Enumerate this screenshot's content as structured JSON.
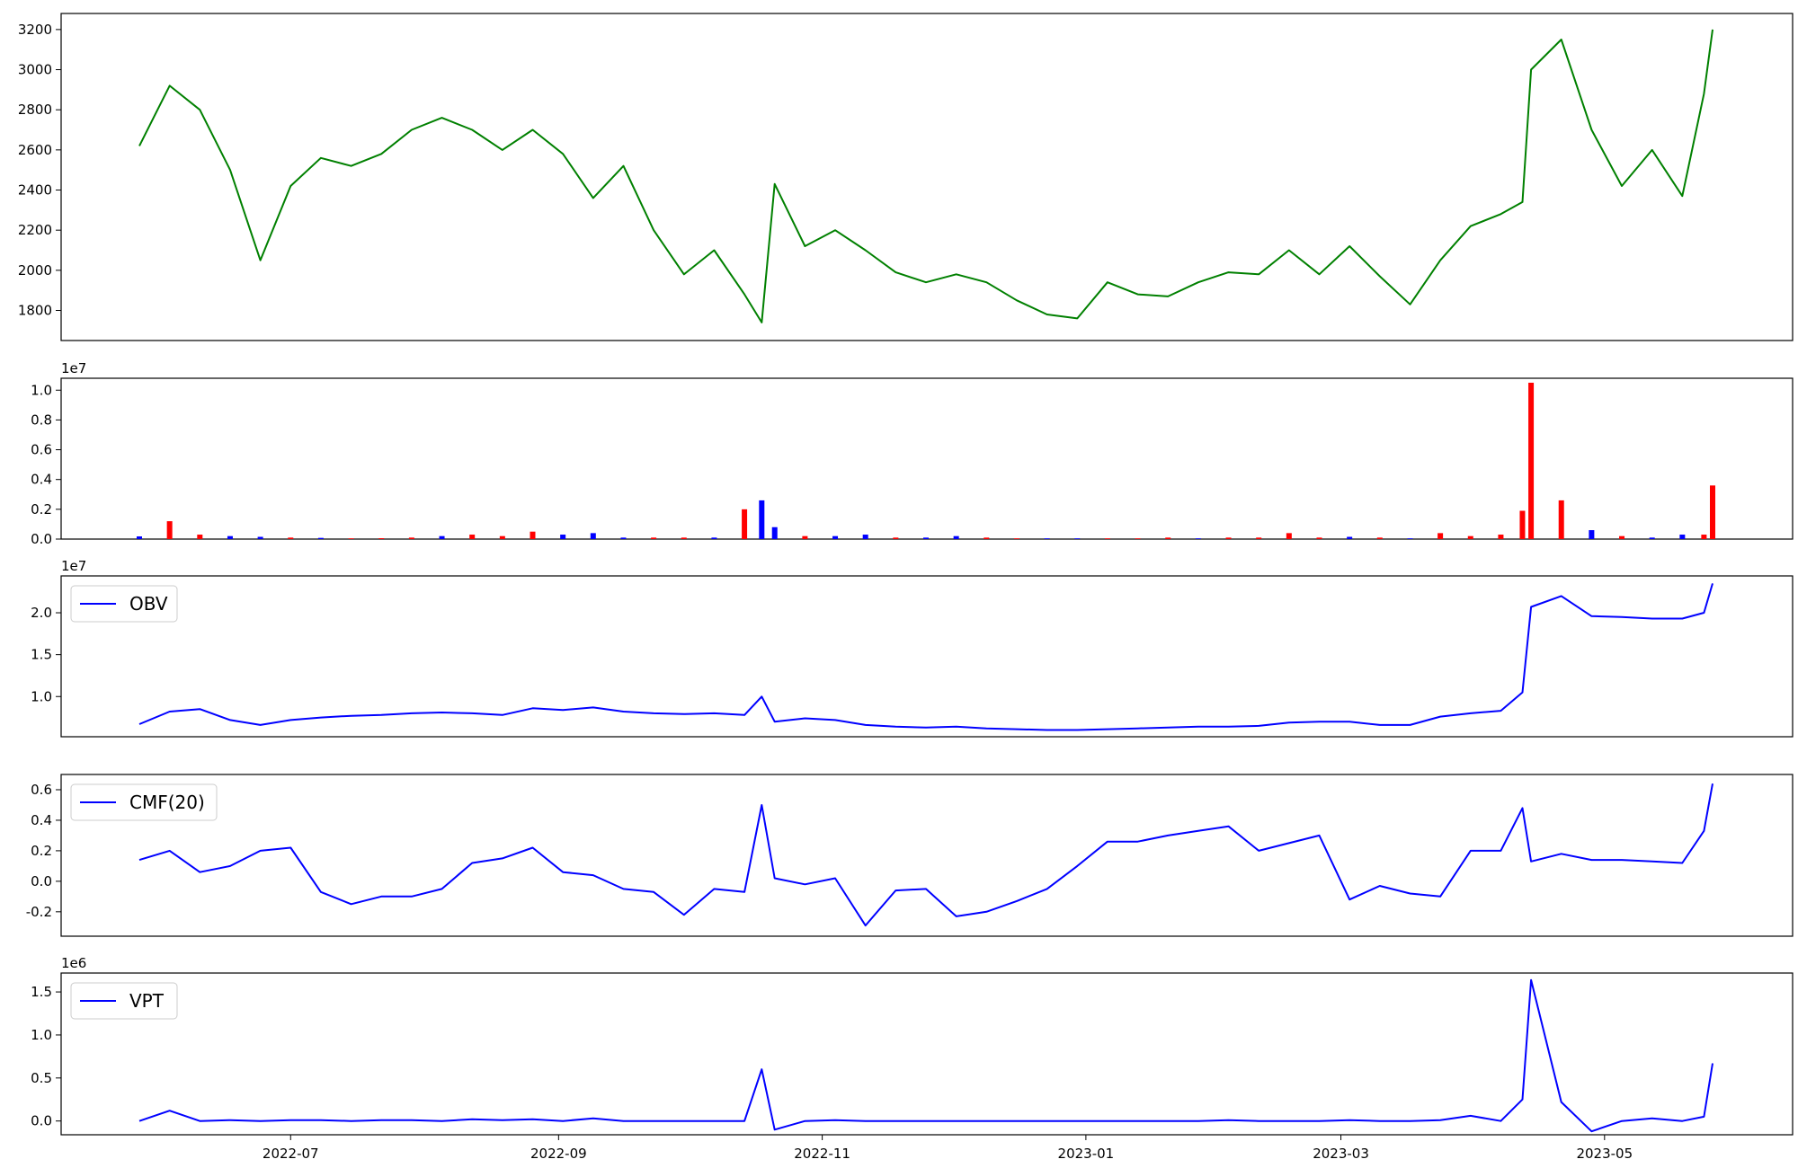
{
  "colors": {
    "price": "#008000",
    "up": "#ff0000",
    "down": "#0000ff",
    "indicator": "#0000ff",
    "axis": "#000000"
  },
  "x_dates": [
    "2022-05-27",
    "2022-06-03",
    "2022-06-10",
    "2022-06-17",
    "2022-06-24",
    "2022-07-01",
    "2022-07-08",
    "2022-07-15",
    "2022-07-22",
    "2022-07-29",
    "2022-08-05",
    "2022-08-12",
    "2022-08-19",
    "2022-08-26",
    "2022-09-02",
    "2022-09-09",
    "2022-09-16",
    "2022-09-23",
    "2022-09-30",
    "2022-10-07",
    "2022-10-14",
    "2022-10-18",
    "2022-10-21",
    "2022-10-28",
    "2022-11-04",
    "2022-11-11",
    "2022-11-18",
    "2022-11-25",
    "2022-12-02",
    "2022-12-09",
    "2022-12-16",
    "2022-12-23",
    "2022-12-30",
    "2023-01-06",
    "2023-01-13",
    "2023-01-20",
    "2023-01-27",
    "2023-02-03",
    "2023-02-10",
    "2023-02-17",
    "2023-02-24",
    "2023-03-03",
    "2023-03-10",
    "2023-03-17",
    "2023-03-24",
    "2023-03-31",
    "2023-04-07",
    "2023-04-12",
    "2023-04-14",
    "2023-04-21",
    "2023-04-28",
    "2023-05-05",
    "2023-05-12",
    "2023-05-19",
    "2023-05-24",
    "2023-05-26"
  ],
  "x_ticks": [
    "2022-07",
    "2022-09",
    "2022-11",
    "2023-01",
    "2023-03",
    "2023-05"
  ],
  "chart_data": [
    {
      "type": "line",
      "panel": "price",
      "series": [
        {
          "values": [
            2620,
            2920,
            2800,
            2500,
            2050,
            2420,
            2560,
            2520,
            2580,
            2700,
            2760,
            2700,
            2600,
            2700,
            2580,
            2360,
            2520,
            2200,
            1980,
            2100,
            1880,
            1740,
            2430,
            2120,
            2200,
            2100,
            1990,
            1940,
            1980,
            1940,
            1850,
            1780,
            1760,
            1940,
            1880,
            1870,
            1940,
            1990,
            1980,
            2100,
            1980,
            2120,
            1970,
            1830,
            2050,
            2220,
            2280,
            2340,
            3000,
            3150,
            2700,
            2420,
            2600,
            2370,
            2880,
            3200
          ]
        }
      ],
      "yticks": [
        1800,
        2000,
        2200,
        2400,
        2600,
        2800,
        3000,
        3200
      ],
      "ylim": [
        1650,
        3280
      ]
    },
    {
      "type": "bar",
      "panel": "volume",
      "scale_label": "1e7",
      "values": [
        0.018,
        0.12,
        0.03,
        0.02,
        0.015,
        0.01,
        0.008,
        0.005,
        0.006,
        0.01,
        0.02,
        0.03,
        0.02,
        0.05,
        0.03,
        0.04,
        0.01,
        0.01,
        0.01,
        0.01,
        0.2,
        0.26,
        0.08,
        0.02,
        0.02,
        0.03,
        0.01,
        0.01,
        0.02,
        0.01,
        0.005,
        0.005,
        0.005,
        0.005,
        0.005,
        0.01,
        0.005,
        0.01,
        0.01,
        0.04,
        0.01,
        0.015,
        0.01,
        0.005,
        0.04,
        0.02,
        0.03,
        0.19,
        1.05,
        0.26,
        0.06,
        0.02,
        0.01,
        0.03,
        0.03,
        0.36
      ],
      "directions": [
        "down",
        "up",
        "up",
        "down",
        "down",
        "up",
        "down",
        "up",
        "up",
        "up",
        "down",
        "up",
        "up",
        "up",
        "down",
        "down",
        "down",
        "up",
        "up",
        "down",
        "up",
        "down",
        "down",
        "up",
        "down",
        "down",
        "up",
        "down",
        "down",
        "up",
        "up",
        "down",
        "down",
        "up",
        "up",
        "up",
        "down",
        "up",
        "up",
        "up",
        "up",
        "down",
        "up",
        "down",
        "up",
        "up",
        "up",
        "up",
        "up",
        "up",
        "down",
        "up",
        "down",
        "down",
        "up",
        "up"
      ],
      "yticks": [
        0.0,
        0.2,
        0.4,
        0.6,
        0.8,
        1.0
      ],
      "ylim": [
        0,
        1.08
      ]
    },
    {
      "type": "line",
      "panel": "obv",
      "scale_label": "1e7",
      "legend": "OBV",
      "series": [
        {
          "name": "OBV",
          "values": [
            0.67,
            0.82,
            0.85,
            0.72,
            0.66,
            0.72,
            0.75,
            0.77,
            0.78,
            0.8,
            0.81,
            0.8,
            0.78,
            0.86,
            0.84,
            0.87,
            0.82,
            0.8,
            0.79,
            0.8,
            0.78,
            1.0,
            0.7,
            0.74,
            0.72,
            0.66,
            0.64,
            0.63,
            0.64,
            0.62,
            0.61,
            0.6,
            0.6,
            0.61,
            0.62,
            0.63,
            0.64,
            0.64,
            0.65,
            0.69,
            0.7,
            0.7,
            0.66,
            0.66,
            0.76,
            0.8,
            0.83,
            1.05,
            2.07,
            2.2,
            1.96,
            1.95,
            1.93,
            1.93,
            2.0,
            2.35
          ]
        }
      ],
      "yticks": [
        1.0,
        1.5,
        2.0
      ],
      "ylim": [
        0.52,
        2.44
      ]
    },
    {
      "type": "line",
      "panel": "cmf",
      "legend": "CMF(20)",
      "series": [
        {
          "name": "CMF(20)",
          "values": [
            0.14,
            0.2,
            0.06,
            0.1,
            0.2,
            0.22,
            -0.07,
            -0.15,
            -0.1,
            -0.1,
            -0.05,
            0.12,
            0.15,
            0.22,
            0.06,
            0.04,
            -0.05,
            -0.07,
            -0.22,
            -0.05,
            -0.07,
            0.5,
            0.02,
            -0.02,
            0.02,
            -0.29,
            -0.06,
            -0.05,
            -0.23,
            -0.2,
            -0.13,
            -0.05,
            0.1,
            0.26,
            0.26,
            0.3,
            0.33,
            0.36,
            0.2,
            0.25,
            0.3,
            -0.12,
            -0.03,
            -0.08,
            -0.1,
            0.2,
            0.2,
            0.48,
            0.13,
            0.18,
            0.14,
            0.14,
            0.13,
            0.12,
            0.33,
            0.64
          ]
        }
      ],
      "yticks": [
        -0.2,
        0.0,
        0.2,
        0.4,
        0.6
      ],
      "ylim": [
        -0.36,
        0.7
      ]
    },
    {
      "type": "line",
      "panel": "vpt",
      "scale_label": "1e6",
      "legend": "VPT",
      "series": [
        {
          "name": "VPT",
          "values": [
            0.0,
            0.12,
            0.0,
            0.01,
            0.0,
            0.01,
            0.01,
            0.0,
            0.01,
            0.01,
            0.0,
            0.02,
            0.01,
            0.02,
            0.0,
            0.03,
            0.0,
            0.0,
            0.0,
            0.0,
            0.0,
            0.6,
            -0.1,
            0.0,
            0.01,
            0.0,
            0.0,
            0.0,
            0.0,
            0.0,
            0.0,
            0.0,
            0.0,
            0.0,
            0.0,
            0.0,
            0.0,
            0.01,
            0.0,
            0.0,
            0.0,
            0.01,
            0.0,
            0.0,
            0.01,
            0.06,
            0.0,
            0.25,
            1.64,
            0.22,
            -0.12,
            0.0,
            0.03,
            0.0,
            0.05,
            0.67
          ]
        }
      ],
      "yticks": [
        0.0,
        0.5,
        1.0,
        1.5
      ],
      "ylim": [
        -0.16,
        1.72
      ]
    }
  ]
}
